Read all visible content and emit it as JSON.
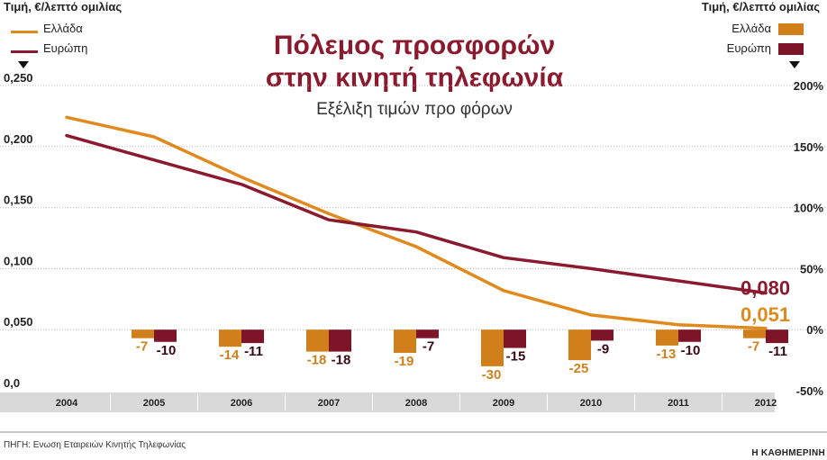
{
  "header": {
    "left_axis_title": "Τιμή, €/λεπτό ομιλίας",
    "right_axis_title": "Τιμή, €/λεπτό ομιλίας"
  },
  "title": {
    "line1": "Πόλεμος προσφορών",
    "line2": "στην κινητή τηλεφωνία",
    "subtitle": "Εξέλιξη τιμών προ φόρων"
  },
  "source": "ΠΗΓΗ: Ενωση Εταιρειών Κινητής Τηλεφωνίας",
  "brand": "Η ΚΑΘΗΜΕΡΙΝΗ",
  "colors": {
    "greece": "#e08a1e",
    "europe": "#8b1a2f",
    "bar_greece": "#d07f1a",
    "bar_europe": "#7d1428",
    "axis_band": "#d9d9d9",
    "grid": "#b8b8b8"
  },
  "chart_data": {
    "type": "line+bar",
    "categories": [
      "2004",
      "2005",
      "2006",
      "2007",
      "2008",
      "2009",
      "2010",
      "2011",
      "2012"
    ],
    "left_axis": {
      "label": "Τιμή, €/λεπτό ομιλίας",
      "ticks": [
        "0,250",
        "0,200",
        "0,150",
        "0,100",
        "0,050",
        "0,0"
      ],
      "range": [
        0,
        0.25
      ]
    },
    "right_axis": {
      "label": "Τιμή, €/λεπτό ομιλίας",
      "ticks": [
        "200%",
        "150%",
        "100%",
        "50%",
        "0%",
        "-50%"
      ],
      "range": [
        -50,
        200
      ]
    },
    "lines": [
      {
        "name": "Ελλάδα",
        "color": "#e08a1e",
        "values": [
          0.224,
          0.208,
          0.175,
          0.145,
          0.118,
          0.082,
          0.062,
          0.054,
          0.051
        ],
        "end_label": "0,051"
      },
      {
        "name": "Ευρώπη",
        "color": "#8b1a2f",
        "values": [
          0.209,
          0.189,
          0.169,
          0.14,
          0.13,
          0.109,
          0.1,
          0.09,
          0.08
        ],
        "end_label": "0,080"
      }
    ],
    "bars": [
      {
        "name": "Ελλάδα",
        "color": "#d07f1a",
        "values": [
          -7,
          -14,
          -18,
          -19,
          -30,
          -25,
          -13,
          -7
        ],
        "labels": [
          "-7",
          "-14",
          "-18",
          "-19",
          "-30",
          "-25",
          "-13",
          "-7"
        ]
      },
      {
        "name": "Ευρώπη",
        "color": "#7d1428",
        "values": [
          -10,
          -11,
          -18,
          -7,
          -15,
          -9,
          -10,
          -11
        ],
        "labels": [
          "-10",
          "-11",
          "-18",
          "-7",
          "-15",
          "-9",
          "-10",
          "-11"
        ]
      }
    ],
    "bar_categories": [
      "2005",
      "2006",
      "2007",
      "2008",
      "2009",
      "2010",
      "2011",
      "2012"
    ],
    "legend_left": "top-left",
    "legend_right": "top-right",
    "grid": true
  }
}
